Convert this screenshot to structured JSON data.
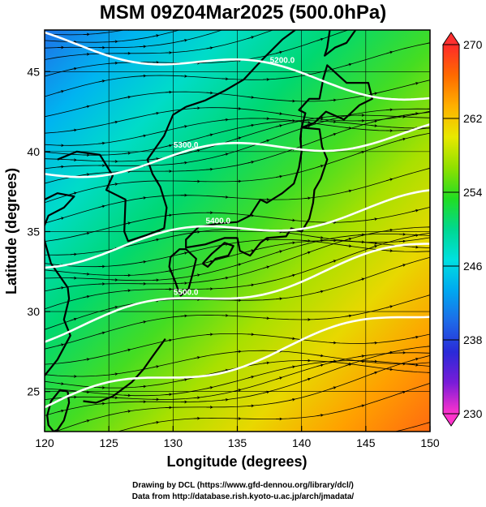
{
  "title": "MSM 09Z04Mar2025 (500.0hPa)",
  "map": {
    "lon_range": [
      120,
      150
    ],
    "lat_range": [
      22.5,
      47.6
    ],
    "x_ticks": [
      120,
      125,
      130,
      135,
      140,
      145,
      150
    ],
    "y_ticks": [
      25,
      30,
      35,
      40,
      45
    ],
    "xlabel": "Longitude (degrees)",
    "ylabel": "Latitude  (degrees)",
    "grid": true,
    "contours": [
      {
        "label": "5200.0",
        "lat_west": 47.0,
        "lat_east": 43.5,
        "label_lon": 138.5
      },
      {
        "label": "5300.0",
        "lat_west": 38.7,
        "lat_east": 41.3,
        "label_lon": 131.0
      },
      {
        "label": "5400.0",
        "lat_west": 33.3,
        "lat_east": 37.0,
        "label_lon": 133.5
      },
      {
        "label": "5500.0",
        "lat_west": 28.6,
        "lat_east": 34.0,
        "label_lon": 131.0
      },
      {
        "label": "",
        "lat_west": 24.0,
        "lat_east": 30.0,
        "label_lon": 0
      }
    ]
  },
  "colorbar": {
    "min": 230,
    "max": 270,
    "ticks": [
      270,
      262,
      254,
      246,
      238,
      230
    ],
    "colors": [
      "#ff33cc",
      "#7a1cd8",
      "#2a2ad8",
      "#1e6ae8",
      "#00a8f0",
      "#00e0e0",
      "#00d890",
      "#22dd22",
      "#90e000",
      "#e8e800",
      "#ffb000",
      "#ff6a00",
      "#ff2a2a"
    ]
  },
  "credits": {
    "line1": "Drawing by DCL (https://www.gfd-dennou.org/library/dcl/)",
    "line2": "Data from http://database.rish.kyoto-u.ac.jp/arch/jmadata/"
  }
}
